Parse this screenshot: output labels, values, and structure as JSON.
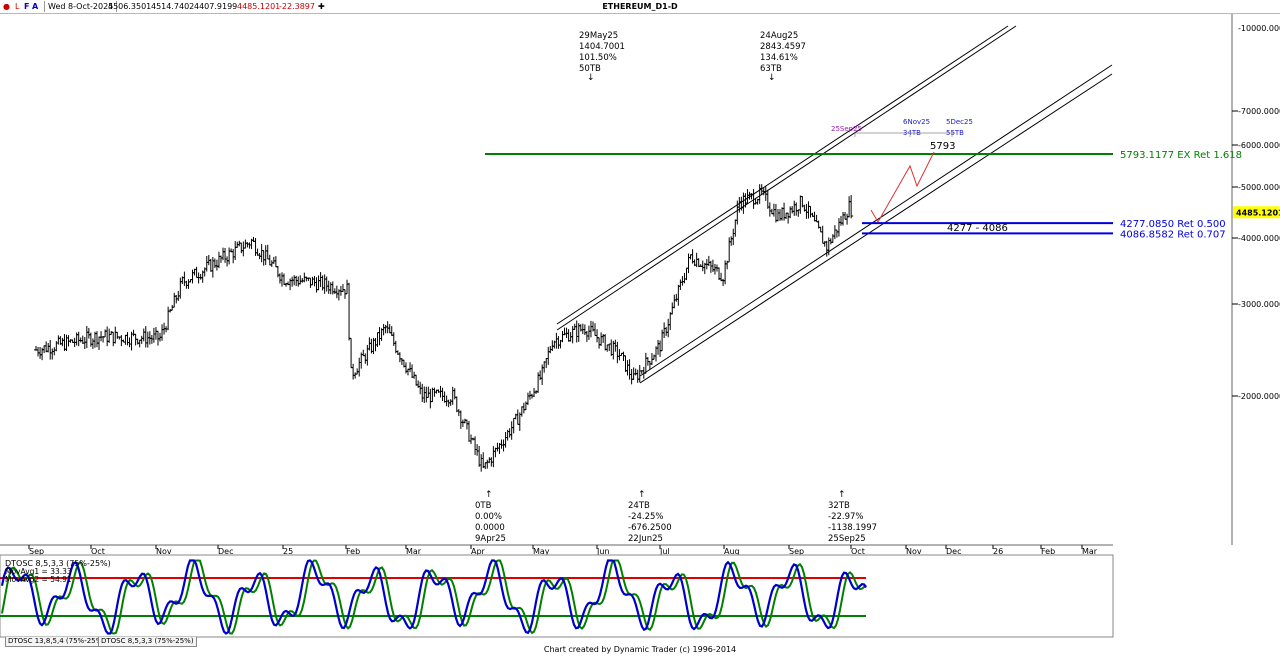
{
  "toolbar": {
    "date": "Wed 8-Oct-2025",
    "open": "4506.3501",
    "high": "4514.7402",
    "low": "4407.9199",
    "close": "4485.1201",
    "change": "-22.3897",
    "icons": [
      "bar-icon",
      "line-icon",
      "fib-icon",
      "crosshair-icon"
    ]
  },
  "title": "ETHEREUM_D1-D",
  "price_axis": {
    "ticks": [
      "7000.0000",
      "6000.0000",
      "5000.0000",
      "4000.0000",
      "3000.0000",
      "2000.0000"
    ],
    "cut_tick": "10000.0000",
    "current_price": "4485.1201",
    "scale": "log"
  },
  "time_axis": {
    "labels": [
      "Sep",
      "Oct",
      "Nov",
      "Dec",
      "25",
      "Feb",
      "Mar",
      "Apr",
      "May",
      "Jun",
      "Jul",
      "Aug",
      "Sep",
      "Oct",
      "Nov",
      "Dec",
      "26",
      "Feb",
      "Mar"
    ]
  },
  "top_annotations": [
    {
      "lines": [
        "29May25",
        "1404.7001",
        "101.50%",
        "50TB"
      ],
      "arrow": "↓"
    },
    {
      "lines": [
        "24Aug25",
        "2843.4597",
        "134.61%",
        "63TB"
      ],
      "arrow": "↓"
    }
  ],
  "bottom_annotations": [
    {
      "lines": [
        "0TB",
        "0.00%",
        "0.0000",
        "9Apr25"
      ],
      "arrow": "↑"
    },
    {
      "lines": [
        "24TB",
        "-24.25%",
        "-676.2500",
        "22Jun25"
      ],
      "arrow": "↑"
    },
    {
      "lines": [
        "32TB",
        "-22.97%",
        "-1138.1997",
        "25Sep25"
      ],
      "arrow": "↑"
    }
  ],
  "time_targets": [
    {
      "lines": [
        "25Sep25"
      ],
      "color": "#9a1fb4"
    },
    {
      "lines": [
        "6Nov25",
        "34TB"
      ],
      "color": "#1a1acc"
    },
    {
      "lines": [
        "5Dec25",
        "55TB"
      ],
      "color": "#1a1acc"
    }
  ],
  "levels": [
    {
      "label": "5793.1177 EX Ret 1.618",
      "price": 5793.1177,
      "color": "#008000"
    },
    {
      "label": "4277.0850 Ret 0.500",
      "price": 4277.085,
      "color": "#0000dd"
    },
    {
      "label": "4086.8582 Ret 0.707",
      "price": 4086.8582,
      "color": "#0000dd"
    }
  ],
  "target_text": "5793",
  "zone_text": "4277 - 4086",
  "chart_data": {
    "type": "line",
    "title": "ETHEREUM_D1-D",
    "x": [
      "2024-09-01",
      "2024-10-01",
      "2024-11-01",
      "2024-11-12",
      "2024-12-01",
      "2024-12-16",
      "2025-01-01",
      "2025-01-15",
      "2025-02-01",
      "2025-02-03",
      "2025-02-20",
      "2025-03-10",
      "2025-03-25",
      "2025-04-09",
      "2025-04-25",
      "2025-05-08",
      "2025-05-13",
      "2025-05-29",
      "2025-06-15",
      "2025-06-22",
      "2025-07-05",
      "2025-07-20",
      "2025-08-05",
      "2025-08-13",
      "2025-08-24",
      "2025-09-01",
      "2025-09-13",
      "2025-09-25",
      "2025-10-06",
      "2025-10-08"
    ],
    "series": [
      {
        "values": [
          2450,
          2600,
          2580,
          3300,
          3650,
          3950,
          3350,
          3300,
          3200,
          2200,
          2700,
          2000,
          2000,
          1450,
          1790,
          2200,
          2550,
          2700,
          2400,
          2150,
          2500,
          3700,
          3400,
          4700,
          4850,
          4400,
          4700,
          3850,
          4600,
          4485
        ]
      }
    ],
    "ylim": [
      1300,
      11000
    ],
    "y_scale": "log",
    "indicator": {
      "name": "DTOSC 8,5,3,3 (75%-25%)",
      "movavg1": "33.33",
      "movavg2": "54.91",
      "overbought": 75,
      "oversold": 25
    },
    "indicator_tabs": [
      "DTOSC 13,8,5,4 (75%-25%)",
      "DTOSC 8,5,3,3 (75%-25%)"
    ]
  },
  "ind_labels": {
    "name": "DTOSC 8,5,3,3 (75%-25%)",
    "ma1": "MovAvg1 = 33.33",
    "ma2": "MovAvg2 = 54.91",
    "ma1_color": "#008000",
    "ma2_color": "#0000cc"
  },
  "footer": "Chart created by Dynamic Trader  (c) 1996-2014"
}
